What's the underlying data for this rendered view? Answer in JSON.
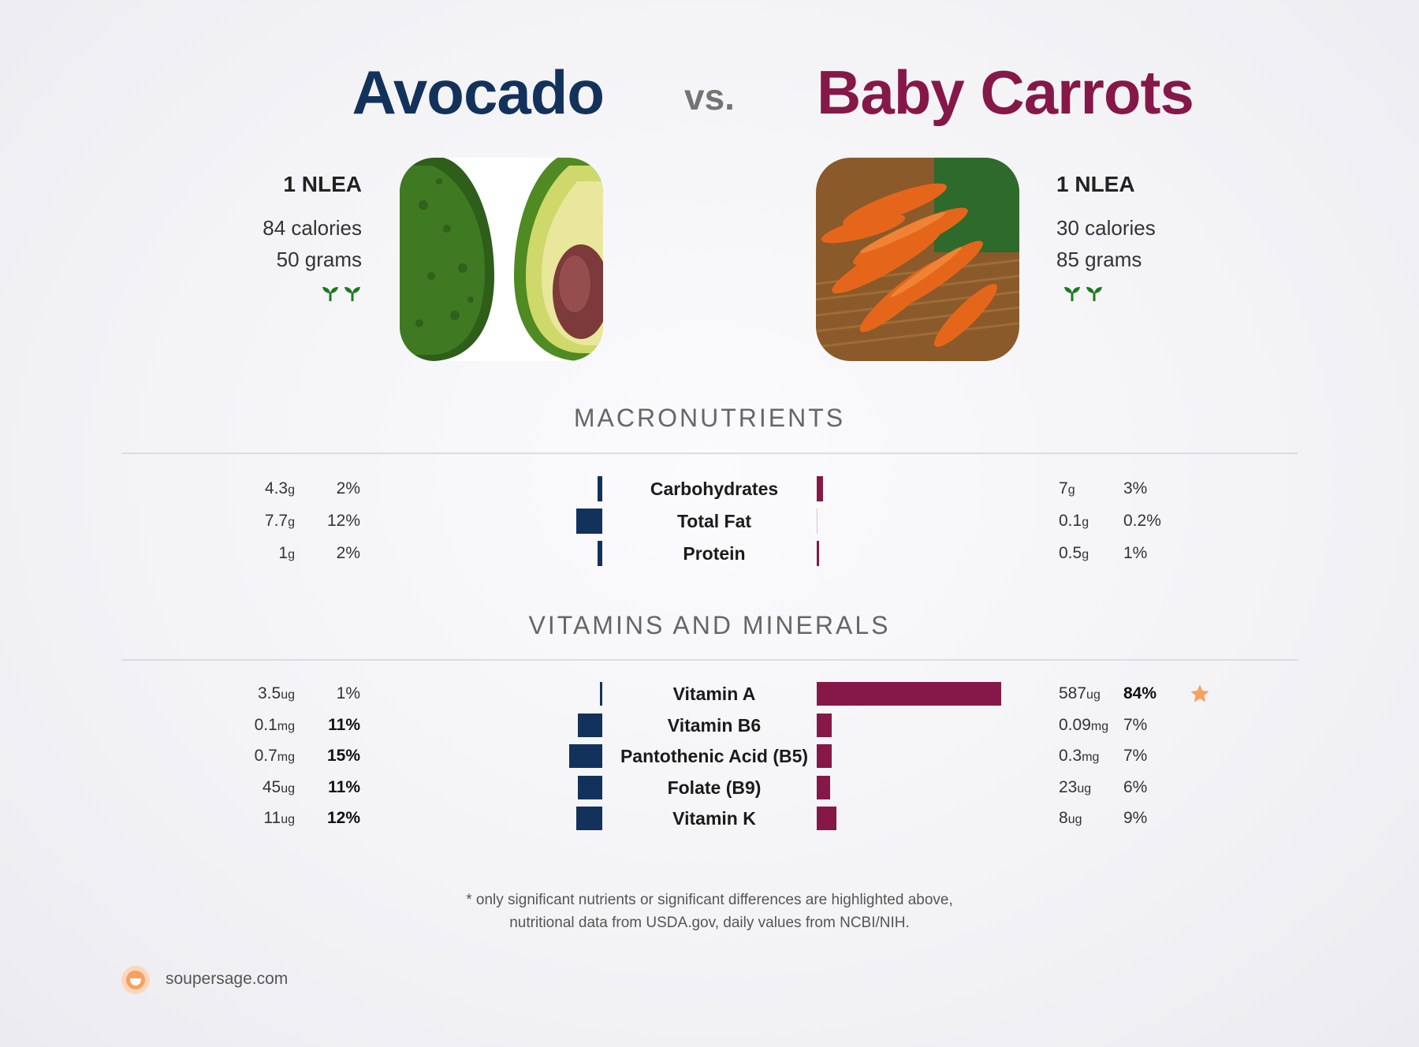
{
  "header": {
    "left_food": "Avocado",
    "vs": "vs.",
    "right_food": "Baby Carrots"
  },
  "left": {
    "serving": "1 NLEA",
    "calories": "84 calories",
    "grams": "50 grams",
    "badge_icons": [
      "sprout-icon",
      "sprout-icon"
    ]
  },
  "right": {
    "serving": "1 NLEA",
    "calories": "30 calories",
    "grams": "85 grams",
    "badge_icons": [
      "sprout-icon",
      "sprout-icon"
    ]
  },
  "macros": {
    "heading": "MACRONUTRIENTS",
    "rows": [
      {
        "name": "Carbohydrates",
        "left_amount": "4.3",
        "left_unit": "g",
        "left_pct": "2%",
        "left_pct_value": 2,
        "right_amount": "7",
        "right_unit": "g",
        "right_pct": "3%",
        "right_pct_value": 3
      },
      {
        "name": "Total Fat",
        "left_amount": "7.7",
        "left_unit": "g",
        "left_pct": "12%",
        "left_pct_value": 12,
        "right_amount": "0.1",
        "right_unit": "g",
        "right_pct": "0.2%",
        "right_pct_value": 0.2
      },
      {
        "name": "Protein",
        "left_amount": "1",
        "left_unit": "g",
        "left_pct": "2%",
        "left_pct_value": 2,
        "right_amount": "0.5",
        "right_unit": "g",
        "right_pct": "1%",
        "right_pct_value": 1
      }
    ]
  },
  "vitamins": {
    "heading": "VITAMINS AND MINERALS",
    "rows": [
      {
        "name": "Vitamin A",
        "left_amount": "3.5",
        "left_unit": "ug",
        "left_pct": "1%",
        "left_pct_value": 1,
        "left_bold": false,
        "right_amount": "587",
        "right_unit": "ug",
        "right_pct": "84%",
        "right_pct_value": 84,
        "right_bold": true,
        "star": true
      },
      {
        "name": "Vitamin B6",
        "left_amount": "0.1",
        "left_unit": "mg",
        "left_pct": "11%",
        "left_pct_value": 11,
        "left_bold": true,
        "right_amount": "0.09",
        "right_unit": "mg",
        "right_pct": "7%",
        "right_pct_value": 7,
        "right_bold": false,
        "star": false
      },
      {
        "name": "Pantothenic Acid (B5)",
        "left_amount": "0.7",
        "left_unit": "mg",
        "left_pct": "15%",
        "left_pct_value": 15,
        "left_bold": true,
        "right_amount": "0.3",
        "right_unit": "mg",
        "right_pct": "7%",
        "right_pct_value": 7,
        "right_bold": false,
        "star": false
      },
      {
        "name": "Folate (B9)",
        "left_amount": "45",
        "left_unit": "ug",
        "left_pct": "11%",
        "left_pct_value": 11,
        "left_bold": true,
        "right_amount": "23",
        "right_unit": "ug",
        "right_pct": "6%",
        "right_pct_value": 6,
        "right_bold": false,
        "star": false
      },
      {
        "name": "Vitamin K",
        "left_amount": "11",
        "left_unit": "ug",
        "left_pct": "12%",
        "left_pct_value": 12,
        "left_bold": true,
        "right_amount": "8",
        "right_unit": "ug",
        "right_pct": "9%",
        "right_pct_value": 9,
        "right_bold": false,
        "star": false
      }
    ]
  },
  "footnote": {
    "line1": "* only significant nutrients or significant differences are highlighted above,",
    "line2": "nutritional data from USDA.gov, daily values from NCBI/NIH."
  },
  "brand": {
    "text": "soupersage.com",
    "icon": "soupersage-logo-icon"
  },
  "colors": {
    "left": "#13325b",
    "right": "#861849",
    "star": "#f4a261",
    "sprout": "#1b7a1b"
  }
}
